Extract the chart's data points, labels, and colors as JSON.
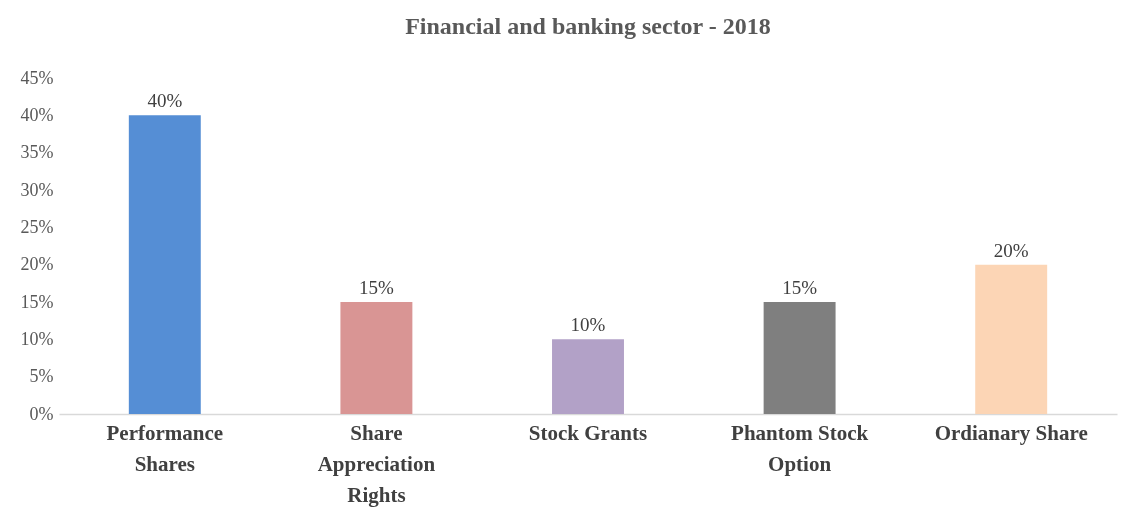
{
  "chart_data": {
    "type": "bar",
    "title": "Financial and banking sector - 2018",
    "categories": [
      "Performance Shares",
      "Share Appreciation Rights",
      "Stock Grants",
      "Phantom Stock Option",
      "Ordianary Share"
    ],
    "values": [
      40,
      15,
      10,
      15,
      20
    ],
    "colors": [
      "#558ed5",
      "#d99594",
      "#b2a1c7",
      "#7f7f7f",
      "#fcd5b5"
    ],
    "value_labels": [
      "40%",
      "15%",
      "10%",
      "15%",
      "20%"
    ],
    "ylim": [
      0,
      45
    ],
    "yticks": [
      {
        "value": 0,
        "label": "0%"
      },
      {
        "value": 5,
        "label": "5%"
      },
      {
        "value": 10,
        "label": "10%"
      },
      {
        "value": 15,
        "label": "15%"
      },
      {
        "value": 20,
        "label": "20%"
      },
      {
        "value": 25,
        "label": "25%"
      },
      {
        "value": 30,
        "label": "30%"
      },
      {
        "value": 35,
        "label": "35%"
      },
      {
        "value": 40,
        "label": "40%"
      },
      {
        "value": 45,
        "label": "45%"
      }
    ],
    "grid": false,
    "legend": false
  }
}
